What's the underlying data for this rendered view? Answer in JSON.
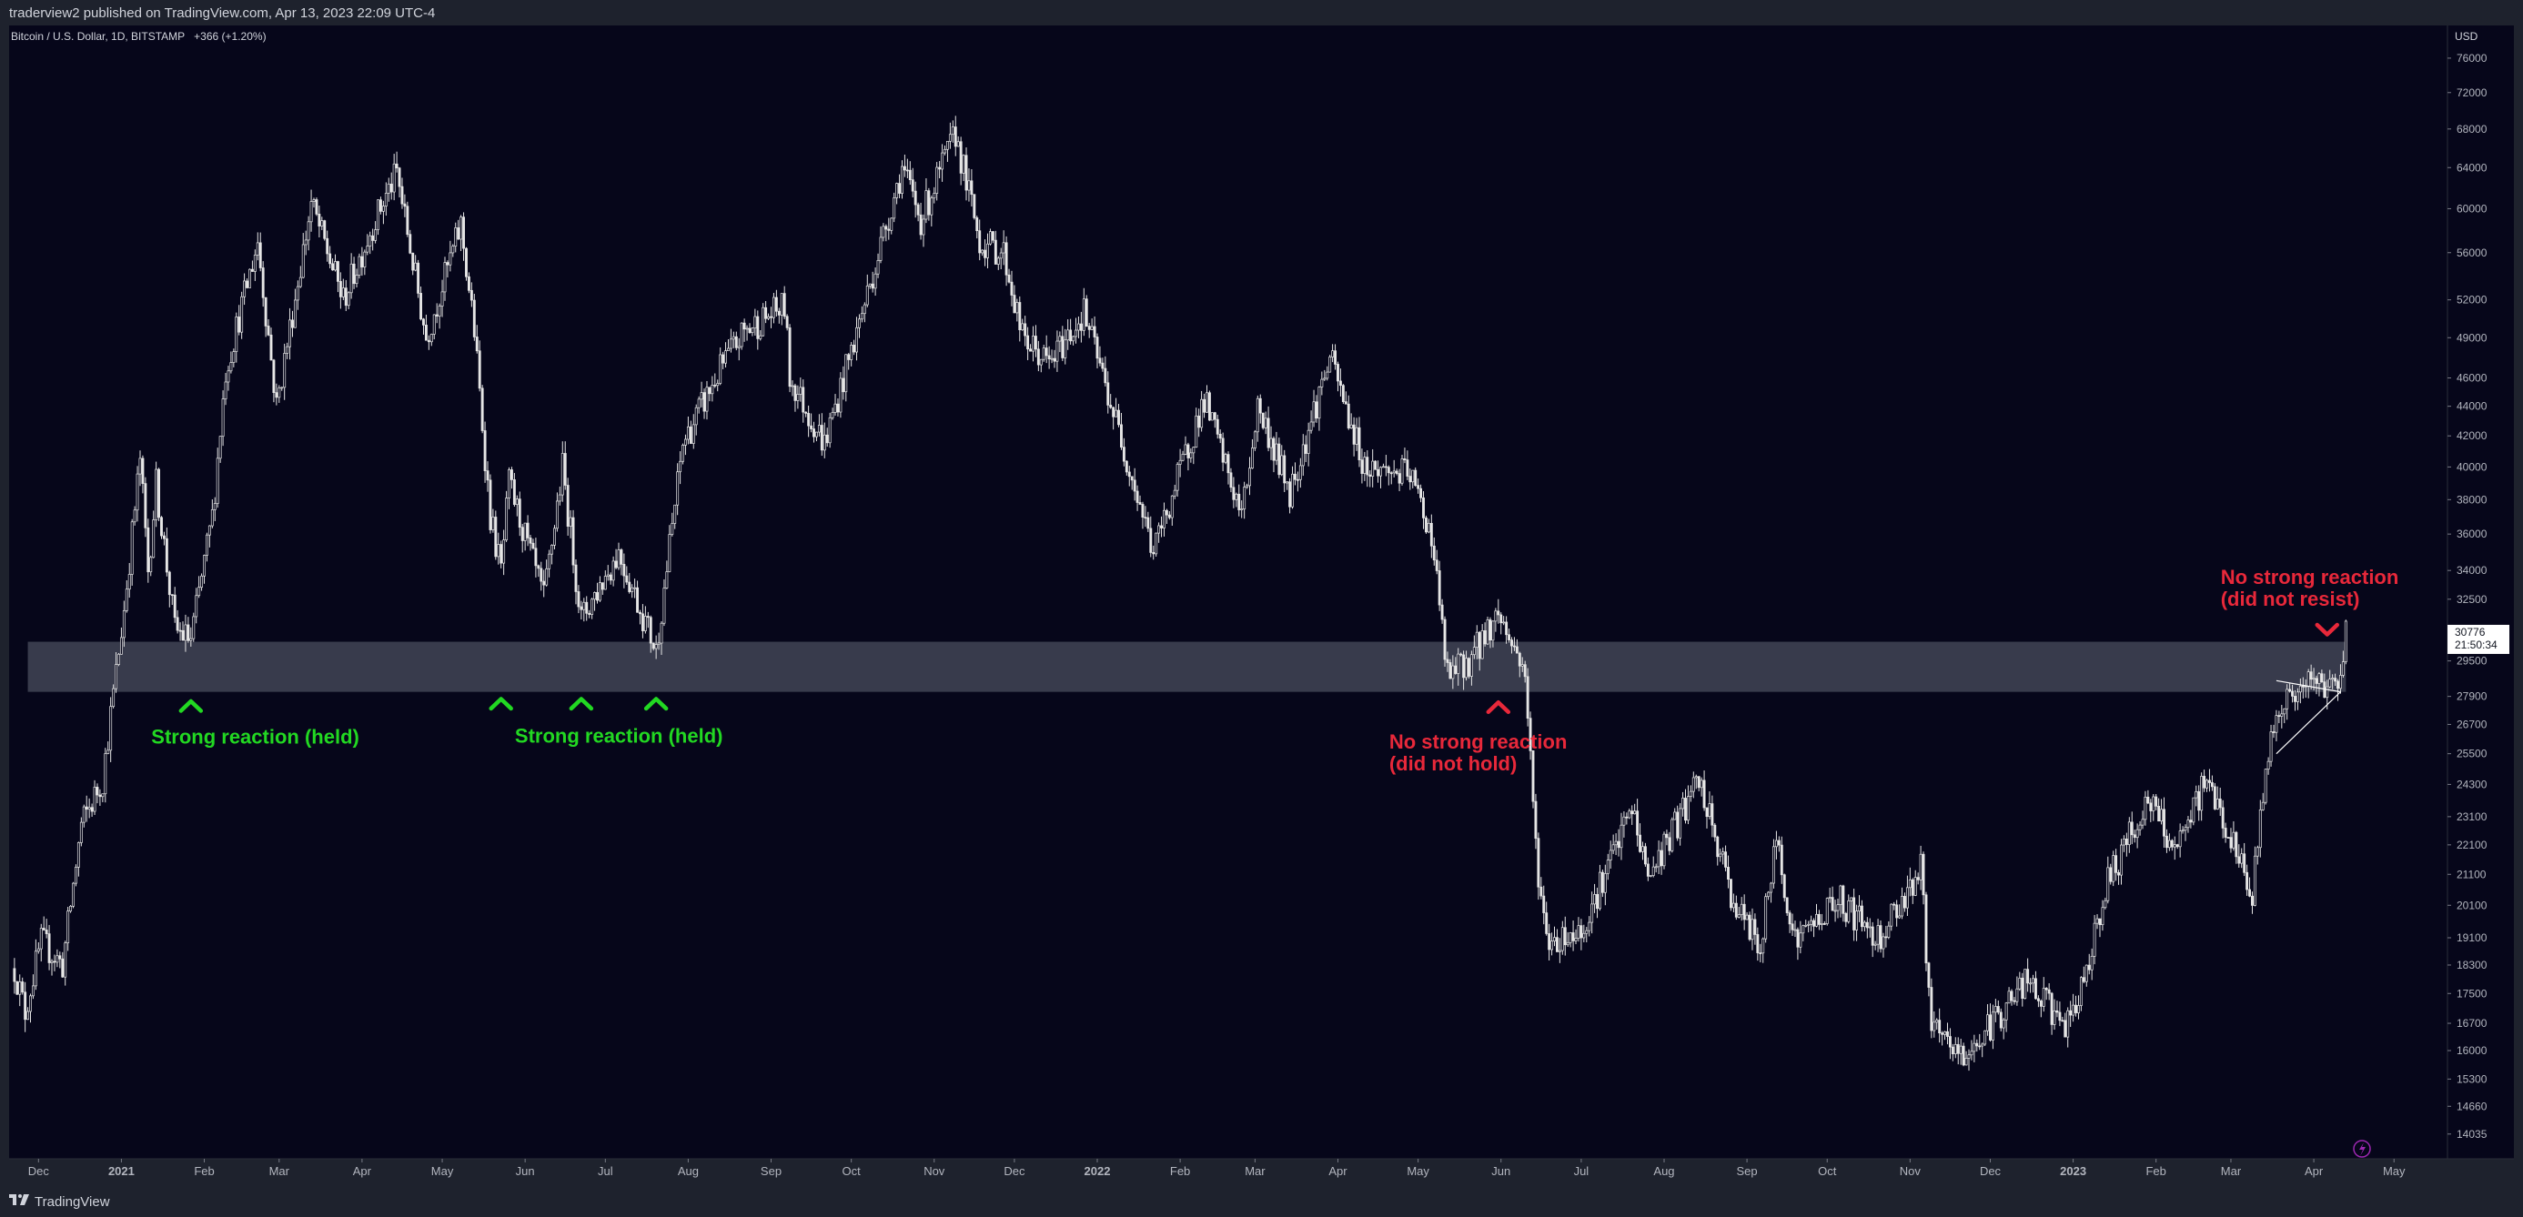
{
  "header": {
    "published": "traderview2 published on TradingView.com, Apr 13, 2023 22:09 UTC-4"
  },
  "footer": {
    "brand": "TradingView",
    "logo_icon": "tradingview-logo-icon"
  },
  "colors": {
    "background": "#06061a",
    "panel": "#1e222d",
    "candle": "#e6e6e6",
    "zone": "#4a4d5e",
    "annotation_green": "#22d822",
    "annotation_red": "#e8283a"
  },
  "chart_data": {
    "type": "candlestick",
    "symbol_label": "Bitcoin / U.S. Dollar, 1D, BITSTAMP",
    "change_label": "+366 (+1.20%)",
    "y_unit": "USD",
    "y_scale": "log",
    "ylim": [
      13500,
      80000
    ],
    "y_ticks": [
      76000,
      72000,
      68000,
      64000,
      60000,
      56000,
      52000,
      49000,
      46000,
      44000,
      42000,
      40000,
      38000,
      36000,
      34000,
      32500,
      29500,
      27900,
      26700,
      25500,
      24300,
      23100,
      22100,
      21100,
      20100,
      19100,
      18300,
      17500,
      16700,
      16000,
      15300,
      14660,
      14035
    ],
    "x_ticks": [
      {
        "label": "Dec",
        "date": "2020-12-01"
      },
      {
        "label": "2021",
        "date": "2021-01-01",
        "bold": true
      },
      {
        "label": "Feb",
        "date": "2021-02-01"
      },
      {
        "label": "Mar",
        "date": "2021-03-01"
      },
      {
        "label": "Apr",
        "date": "2021-04-01"
      },
      {
        "label": "May",
        "date": "2021-05-01"
      },
      {
        "label": "Jun",
        "date": "2021-06-01"
      },
      {
        "label": "Jul",
        "date": "2021-07-01"
      },
      {
        "label": "Aug",
        "date": "2021-08-01"
      },
      {
        "label": "Sep",
        "date": "2021-09-01"
      },
      {
        "label": "Oct",
        "date": "2021-10-01"
      },
      {
        "label": "Nov",
        "date": "2021-11-01"
      },
      {
        "label": "Dec",
        "date": "2021-12-01"
      },
      {
        "label": "2022",
        "date": "2022-01-01",
        "bold": true
      },
      {
        "label": "Feb",
        "date": "2022-02-01"
      },
      {
        "label": "Mar",
        "date": "2022-03-01"
      },
      {
        "label": "Apr",
        "date": "2022-04-01"
      },
      {
        "label": "May",
        "date": "2022-05-01"
      },
      {
        "label": "Jun",
        "date": "2022-06-01"
      },
      {
        "label": "Jul",
        "date": "2022-07-01"
      },
      {
        "label": "Aug",
        "date": "2022-08-01"
      },
      {
        "label": "Sep",
        "date": "2022-09-01"
      },
      {
        "label": "Oct",
        "date": "2022-10-01"
      },
      {
        "label": "Nov",
        "date": "2022-11-01"
      },
      {
        "label": "Dec",
        "date": "2022-12-01"
      },
      {
        "label": "2023",
        "date": "2023-01-01",
        "bold": true
      },
      {
        "label": "Feb",
        "date": "2023-02-01"
      },
      {
        "label": "Mar",
        "date": "2023-03-01"
      },
      {
        "label": "Apr",
        "date": "2023-04-01"
      },
      {
        "label": "May",
        "date": "2023-05-01"
      }
    ],
    "x_range": [
      "2020-11-20",
      "2023-05-21"
    ],
    "last_price": {
      "value": 30776,
      "label": "30776",
      "countdown": "21:50:34"
    },
    "price_path": [
      {
        "date": "2020-11-22",
        "value": 18200
      },
      {
        "date": "2020-11-26",
        "value": 17000
      },
      {
        "date": "2020-12-02",
        "value": 19000
      },
      {
        "date": "2020-12-10",
        "value": 18300
      },
      {
        "date": "2020-12-17",
        "value": 22800
      },
      {
        "date": "2020-12-25",
        "value": 24500
      },
      {
        "date": "2021-01-02",
        "value": 32000
      },
      {
        "date": "2021-01-08",
        "value": 40500
      },
      {
        "date": "2021-01-11",
        "value": 34000
      },
      {
        "date": "2021-01-14",
        "value": 39000
      },
      {
        "date": "2021-01-21",
        "value": 31000
      },
      {
        "date": "2021-01-27",
        "value": 30500
      },
      {
        "date": "2021-02-04",
        "value": 37000
      },
      {
        "date": "2021-02-09",
        "value": 46500
      },
      {
        "date": "2021-02-21",
        "value": 57000
      },
      {
        "date": "2021-02-28",
        "value": 44000
      },
      {
        "date": "2021-03-13",
        "value": 60500
      },
      {
        "date": "2021-03-25",
        "value": 52000
      },
      {
        "date": "2021-04-05",
        "value": 58500
      },
      {
        "date": "2021-04-14",
        "value": 63500
      },
      {
        "date": "2021-04-25",
        "value": 49000
      },
      {
        "date": "2021-05-08",
        "value": 58500
      },
      {
        "date": "2021-05-13",
        "value": 49500
      },
      {
        "date": "2021-05-19",
        "value": 37000
      },
      {
        "date": "2021-05-23",
        "value": 34000
      },
      {
        "date": "2021-05-26",
        "value": 39000
      },
      {
        "date": "2021-06-08",
        "value": 32500
      },
      {
        "date": "2021-06-15",
        "value": 40000
      },
      {
        "date": "2021-06-22",
        "value": 31500
      },
      {
        "date": "2021-07-06",
        "value": 35000
      },
      {
        "date": "2021-07-20",
        "value": 30000
      },
      {
        "date": "2021-07-30",
        "value": 41500
      },
      {
        "date": "2021-08-14",
        "value": 47000
      },
      {
        "date": "2021-08-22",
        "value": 49500
      },
      {
        "date": "2021-09-06",
        "value": 51500
      },
      {
        "date": "2021-09-08",
        "value": 46000
      },
      {
        "date": "2021-09-21",
        "value": 41500
      },
      {
        "date": "2021-10-01",
        "value": 48000
      },
      {
        "date": "2021-10-20",
        "value": 64000
      },
      {
        "date": "2021-10-27",
        "value": 59000
      },
      {
        "date": "2021-11-09",
        "value": 67500
      },
      {
        "date": "2021-11-18",
        "value": 57000
      },
      {
        "date": "2021-11-27",
        "value": 56000
      },
      {
        "date": "2021-12-04",
        "value": 49000
      },
      {
        "date": "2021-12-14",
        "value": 47000
      },
      {
        "date": "2021-12-27",
        "value": 51000
      },
      {
        "date": "2022-01-10",
        "value": 41800
      },
      {
        "date": "2022-01-22",
        "value": 35000
      },
      {
        "date": "2022-02-10",
        "value": 44500
      },
      {
        "date": "2022-02-24",
        "value": 37000
      },
      {
        "date": "2022-03-02",
        "value": 44000
      },
      {
        "date": "2022-03-14",
        "value": 38500
      },
      {
        "date": "2022-03-29",
        "value": 47500
      },
      {
        "date": "2022-04-11",
        "value": 40000
      },
      {
        "date": "2022-04-28",
        "value": 39500
      },
      {
        "date": "2022-05-06",
        "value": 36000
      },
      {
        "date": "2022-05-12",
        "value": 28800
      },
      {
        "date": "2022-05-20",
        "value": 29500
      },
      {
        "date": "2022-05-31",
        "value": 31800
      },
      {
        "date": "2022-06-10",
        "value": 29000
      },
      {
        "date": "2022-06-14",
        "value": 22000
      },
      {
        "date": "2022-06-18",
        "value": 19000
      },
      {
        "date": "2022-07-01",
        "value": 19300
      },
      {
        "date": "2022-07-20",
        "value": 23400
      },
      {
        "date": "2022-07-26",
        "value": 21000
      },
      {
        "date": "2022-08-14",
        "value": 24400
      },
      {
        "date": "2022-08-27",
        "value": 20200
      },
      {
        "date": "2022-09-06",
        "value": 18800
      },
      {
        "date": "2022-09-12",
        "value": 22300
      },
      {
        "date": "2022-09-19",
        "value": 19000
      },
      {
        "date": "2022-10-05",
        "value": 20300
      },
      {
        "date": "2022-10-20",
        "value": 19100
      },
      {
        "date": "2022-11-05",
        "value": 21300
      },
      {
        "date": "2022-11-09",
        "value": 16500
      },
      {
        "date": "2022-11-21",
        "value": 15800
      },
      {
        "date": "2022-12-14",
        "value": 17800
      },
      {
        "date": "2022-12-31",
        "value": 16550
      },
      {
        "date": "2023-01-14",
        "value": 20900
      },
      {
        "date": "2023-01-29",
        "value": 23700
      },
      {
        "date": "2023-02-09",
        "value": 21800
      },
      {
        "date": "2023-02-20",
        "value": 24600
      },
      {
        "date": "2023-03-09",
        "value": 20400
      },
      {
        "date": "2023-03-13",
        "value": 24100
      },
      {
        "date": "2023-03-18",
        "value": 27400
      },
      {
        "date": "2023-04-01",
        "value": 28500
      },
      {
        "date": "2023-04-09",
        "value": 28300
      },
      {
        "date": "2023-04-13",
        "value": 30776
      }
    ],
    "zones": [
      {
        "name": "support-resistance-zone",
        "from": 28100,
        "to": 30400,
        "start": "2020-11-27",
        "end": "2023-04-13"
      }
    ],
    "triangle": {
      "upper": [
        {
          "date": "2023-03-18",
          "value": 28600
        },
        {
          "date": "2023-04-11",
          "value": 28100
        }
      ],
      "lower": [
        {
          "date": "2023-03-18",
          "value": 25500
        },
        {
          "date": "2023-04-11",
          "value": 28100
        }
      ]
    },
    "annotations": [
      {
        "text": "Strong reaction (held)",
        "color": "green",
        "date": "2021-02-05",
        "value": 25900,
        "arrow": "up",
        "arrow_date": "2021-01-27",
        "arrow_value": 27600
      },
      {
        "text": "Strong reaction (held)",
        "color": "green",
        "date": "2021-06-21",
        "value": 25950,
        "arrow": "up",
        "arrow_date": "2021-05-23",
        "arrow_value": 27700
      },
      {
        "text": "",
        "color": "green",
        "arrow": "up",
        "arrow_date": "2021-06-22",
        "arrow_value": 27700
      },
      {
        "text": "",
        "color": "green",
        "arrow": "up",
        "arrow_date": "2021-07-20",
        "arrow_value": 27700
      },
      {
        "text": "No strong reaction",
        "text2": "(did not hold)",
        "color": "red",
        "date": "2022-05-14",
        "value": 25700,
        "arrow": "up",
        "arrow_date": "2022-05-31",
        "arrow_value": 27550
      },
      {
        "text": "No strong reaction",
        "text2": "(did not resist)",
        "color": "red",
        "date": "2023-03-21",
        "value": 33300,
        "arrow": "down",
        "arrow_date": "2023-04-06",
        "arrow_value": 30850
      }
    ]
  }
}
